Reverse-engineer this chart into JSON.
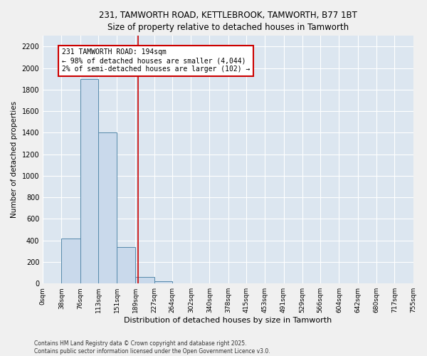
{
  "title_line1": "231, TAMWORTH ROAD, KETTLEBROOK, TAMWORTH, B77 1BT",
  "title_line2": "Size of property relative to detached houses in Tamworth",
  "xlabel": "Distribution of detached houses by size in Tamworth",
  "ylabel": "Number of detached properties",
  "bar_edges": [
    0,
    38,
    76,
    113,
    151,
    189,
    227,
    264,
    302,
    340,
    378,
    415,
    453,
    491,
    529,
    566,
    604,
    642,
    680,
    717,
    755
  ],
  "bar_heights": [
    0,
    420,
    1900,
    1400,
    340,
    60,
    20,
    0,
    0,
    0,
    0,
    0,
    0,
    0,
    0,
    0,
    0,
    0,
    0,
    0
  ],
  "bar_color": "#c9d9eb",
  "bar_edge_color": "#5588aa",
  "vline_x": 194,
  "vline_color": "#cc0000",
  "annotation_text": "231 TAMWORTH ROAD: 194sqm\n← 98% of detached houses are smaller (4,044)\n2% of semi-detached houses are larger (102) →",
  "annotation_box_color": "#cc0000",
  "ylim": [
    0,
    2300
  ],
  "yticks": [
    0,
    200,
    400,
    600,
    800,
    1000,
    1200,
    1400,
    1600,
    1800,
    2000,
    2200
  ],
  "background_color": "#dce6f0",
  "grid_color": "#ffffff",
  "fig_background": "#f0f0f0",
  "footer_line1": "Contains HM Land Registry data © Crown copyright and database right 2025.",
  "footer_line2": "Contains public sector information licensed under the Open Government Licence v3.0.",
  "tick_labels": [
    "0sqm",
    "38sqm",
    "76sqm",
    "113sqm",
    "151sqm",
    "189sqm",
    "227sqm",
    "264sqm",
    "302sqm",
    "340sqm",
    "378sqm",
    "415sqm",
    "453sqm",
    "491sqm",
    "529sqm",
    "566sqm",
    "604sqm",
    "642sqm",
    "680sqm",
    "717sqm",
    "755sqm"
  ]
}
